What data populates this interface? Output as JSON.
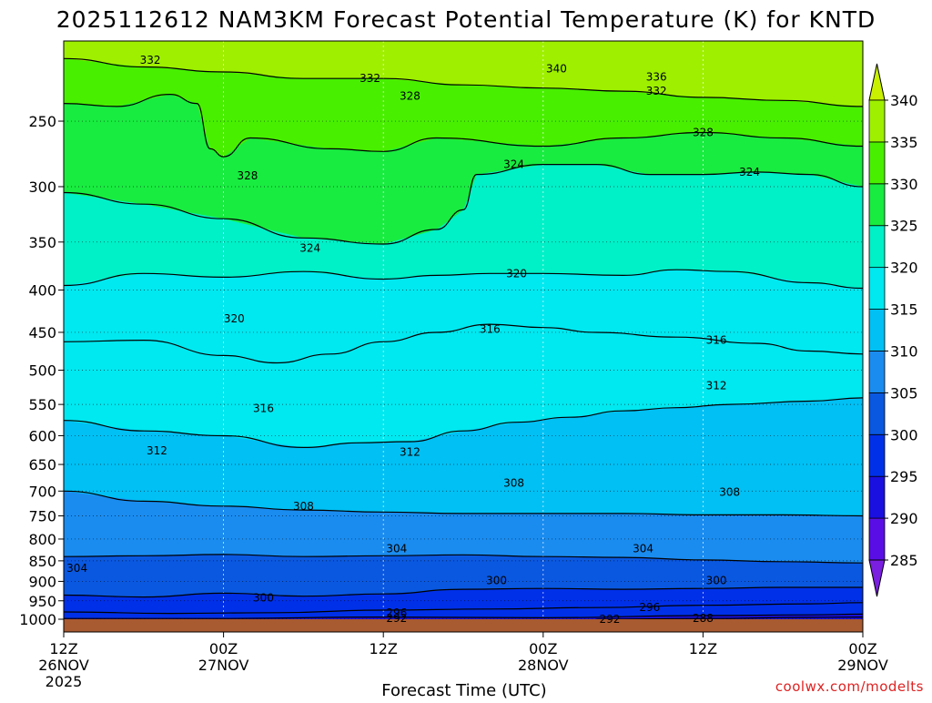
{
  "title": "2025112612 NAM3KM Forecast Potential Temperature (K) for KNTD",
  "xlabel": "Forecast Time (UTC)",
  "credit": "coolwx.com/modelts",
  "year_label": "2025",
  "chart_data": {
    "type": "contour",
    "variable": "Potential Temperature (K)",
    "model": "NAM3KM",
    "station": "KNTD",
    "init": "2025112612",
    "y_axis": {
      "scale": "pressure (log)",
      "range": [
        1000,
        200
      ],
      "ticks": [
        250,
        300,
        350,
        400,
        450,
        500,
        550,
        600,
        650,
        700,
        750,
        800,
        850,
        900,
        950,
        1000
      ]
    },
    "x_axis": {
      "range_hours": [
        0,
        60
      ],
      "ticks": [
        {
          "hour": 0,
          "time": "12Z",
          "date": "26NOV"
        },
        {
          "hour": 12,
          "time": "00Z",
          "date": "27NOV"
        },
        {
          "hour": 24,
          "time": "12Z",
          "date": ""
        },
        {
          "hour": 36,
          "time": "00Z",
          "date": "28NOV"
        },
        {
          "hour": 48,
          "time": "12Z",
          "date": ""
        },
        {
          "hour": 60,
          "time": "00Z",
          "date": "29NOV"
        }
      ]
    },
    "grid": true,
    "colorbar": {
      "labels": [
        285,
        290,
        295,
        300,
        305,
        310,
        315,
        320,
        325,
        330,
        335,
        340
      ],
      "colors": [
        "#7a1ee0",
        "#5a0ee6",
        "#1a10e0",
        "#0030e8",
        "#0a58e0",
        "#1a8cf0",
        "#00c0f4",
        "#00e8f0",
        "#00f0c8",
        "#18ec40",
        "#48f000",
        "#9ef000",
        "#c8f000"
      ]
    },
    "contours": [
      {
        "level": 332,
        "p": [
          [
            0,
            210
          ],
          [
            6,
            215
          ],
          [
            12,
            218
          ],
          [
            18,
            222
          ],
          [
            24,
            222
          ],
          [
            30,
            226
          ],
          [
            36,
            228
          ],
          [
            42,
            230
          ],
          [
            48,
            234
          ],
          [
            54,
            236
          ],
          [
            60,
            240
          ]
        ]
      },
      {
        "level": 328,
        "p": [
          [
            0,
            238
          ],
          [
            4,
            240
          ],
          [
            8,
            232
          ],
          [
            10,
            238
          ],
          [
            11,
            270
          ],
          [
            12,
            276
          ],
          [
            14,
            262
          ],
          [
            20,
            270
          ],
          [
            24,
            272
          ],
          [
            28,
            262
          ],
          [
            36,
            268
          ],
          [
            42,
            262
          ],
          [
            48,
            258
          ],
          [
            54,
            262
          ],
          [
            60,
            268
          ]
        ]
      },
      {
        "level": 324,
        "p": [
          [
            0,
            305
          ],
          [
            6,
            315
          ],
          [
            12,
            328
          ],
          [
            18,
            346
          ],
          [
            24,
            352
          ],
          [
            28,
            338
          ],
          [
            30,
            320
          ],
          [
            31,
            290
          ],
          [
            36,
            282
          ],
          [
            40,
            282
          ],
          [
            44,
            290
          ],
          [
            48,
            290
          ],
          [
            52,
            288
          ],
          [
            56,
            290
          ],
          [
            60,
            300
          ]
        ]
      },
      {
        "level": 320,
        "p": [
          [
            0,
            395
          ],
          [
            6,
            382
          ],
          [
            12,
            386
          ],
          [
            18,
            380
          ],
          [
            24,
            388
          ],
          [
            28,
            384
          ],
          [
            32,
            382
          ],
          [
            36,
            382
          ],
          [
            42,
            384
          ],
          [
            46,
            378
          ],
          [
            50,
            380
          ],
          [
            56,
            392
          ],
          [
            60,
            398
          ]
        ]
      },
      {
        "level": 316,
        "p": [
          [
            0,
            462
          ],
          [
            6,
            460
          ],
          [
            12,
            480
          ],
          [
            16,
            490
          ],
          [
            20,
            478
          ],
          [
            24,
            462
          ],
          [
            28,
            450
          ],
          [
            32,
            440
          ],
          [
            36,
            444
          ],
          [
            40,
            450
          ],
          [
            46,
            456
          ],
          [
            52,
            464
          ],
          [
            56,
            474
          ],
          [
            60,
            478
          ]
        ]
      },
      {
        "level": 312,
        "p": [
          [
            0,
            575
          ],
          [
            6,
            592
          ],
          [
            12,
            600
          ],
          [
            18,
            620
          ],
          [
            22,
            612
          ],
          [
            26,
            610
          ],
          [
            30,
            592
          ],
          [
            34,
            578
          ],
          [
            38,
            570
          ],
          [
            42,
            560
          ],
          [
            46,
            555
          ],
          [
            50,
            550
          ],
          [
            56,
            545
          ],
          [
            60,
            540
          ]
        ]
      },
      {
        "level": 308,
        "p": [
          [
            0,
            700
          ],
          [
            6,
            720
          ],
          [
            12,
            730
          ],
          [
            18,
            738
          ],
          [
            24,
            742
          ],
          [
            30,
            745
          ],
          [
            36,
            745
          ],
          [
            42,
            745
          ],
          [
            48,
            748
          ],
          [
            54,
            748
          ],
          [
            60,
            750
          ]
        ]
      },
      {
        "level": 304,
        "p": [
          [
            0,
            840
          ],
          [
            6,
            838
          ],
          [
            12,
            835
          ],
          [
            18,
            840
          ],
          [
            24,
            838
          ],
          [
            30,
            836
          ],
          [
            36,
            840
          ],
          [
            42,
            842
          ],
          [
            48,
            848
          ],
          [
            54,
            852
          ],
          [
            60,
            855
          ]
        ]
      },
      {
        "level": 300,
        "p": [
          [
            0,
            935
          ],
          [
            6,
            940
          ],
          [
            12,
            930
          ],
          [
            18,
            938
          ],
          [
            24,
            932
          ],
          [
            30,
            920
          ],
          [
            36,
            918
          ],
          [
            42,
            920
          ],
          [
            48,
            918
          ],
          [
            54,
            915
          ],
          [
            60,
            915
          ]
        ]
      },
      {
        "level": 296,
        "p": [
          [
            0,
            980
          ],
          [
            8,
            984
          ],
          [
            16,
            982
          ],
          [
            24,
            975
          ],
          [
            32,
            972
          ],
          [
            40,
            968
          ],
          [
            48,
            962
          ],
          [
            56,
            958
          ],
          [
            60,
            955
          ]
        ]
      },
      {
        "level": 292,
        "p": [
          [
            0,
            998
          ],
          [
            12,
            998
          ],
          [
            24,
            994
          ],
          [
            36,
            996
          ],
          [
            48,
            990
          ],
          [
            56,
            988
          ],
          [
            60,
            986
          ]
        ]
      },
      {
        "level": 288,
        "p": [
          [
            40,
            1000
          ],
          [
            48,
            998
          ],
          [
            56,
            995
          ],
          [
            60,
            994
          ]
        ]
      }
    ],
    "contour_labels": [
      {
        "text": "332",
        "h": 6.5,
        "p": 211
      },
      {
        "text": "332",
        "h": 23.0,
        "p": 222
      },
      {
        "text": "340",
        "h": 37.0,
        "p": 216
      },
      {
        "text": "336",
        "h": 44.5,
        "p": 221
      },
      {
        "text": "332",
        "h": 44.5,
        "p": 230
      },
      {
        "text": "328",
        "h": 26.0,
        "p": 233
      },
      {
        "text": "328",
        "h": 48.0,
        "p": 258
      },
      {
        "text": "328",
        "h": 13.8,
        "p": 291
      },
      {
        "text": "324",
        "h": 33.8,
        "p": 282
      },
      {
        "text": "324",
        "h": 51.5,
        "p": 288
      },
      {
        "text": "324",
        "h": 18.5,
        "p": 356
      },
      {
        "text": "320",
        "h": 34.0,
        "p": 382
      },
      {
        "text": "320",
        "h": 12.8,
        "p": 433
      },
      {
        "text": "316",
        "h": 32.0,
        "p": 446
      },
      {
        "text": "316",
        "h": 49.0,
        "p": 460
      },
      {
        "text": "316",
        "h": 15.0,
        "p": 556
      },
      {
        "text": "312",
        "h": 49.0,
        "p": 522
      },
      {
        "text": "312",
        "h": 7.0,
        "p": 626
      },
      {
        "text": "312",
        "h": 26.0,
        "p": 628
      },
      {
        "text": "308",
        "h": 33.8,
        "p": 685
      },
      {
        "text": "308",
        "h": 50.0,
        "p": 702
      },
      {
        "text": "308",
        "h": 18.0,
        "p": 730
      },
      {
        "text": "304",
        "h": 25.0,
        "p": 822
      },
      {
        "text": "304",
        "h": 43.5,
        "p": 822
      },
      {
        "text": "304",
        "h": 1.0,
        "p": 868
      },
      {
        "text": "300",
        "h": 32.5,
        "p": 898
      },
      {
        "text": "300",
        "h": 49.0,
        "p": 898
      },
      {
        "text": "300",
        "h": 15.0,
        "p": 942
      },
      {
        "text": "296",
        "h": 25.0,
        "p": 982
      },
      {
        "text": "296",
        "h": 44.0,
        "p": 968
      },
      {
        "text": "292",
        "h": 25.0,
        "p": 998
      },
      {
        "text": "292",
        "h": 41.0,
        "p": 1000
      },
      {
        "text": "288",
        "h": 48.0,
        "p": 998
      }
    ]
  }
}
